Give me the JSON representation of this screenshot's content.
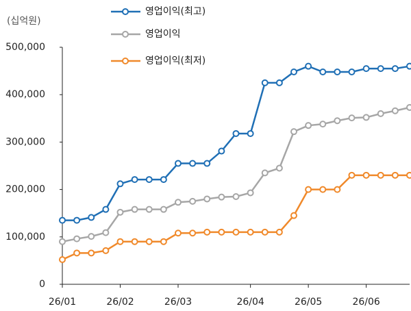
{
  "chart_data": {
    "type": "line",
    "y_axis_label": "(십억원)",
    "categories": [
      "26/01",
      null,
      null,
      null,
      "26/02",
      null,
      null,
      null,
      "26/03",
      null,
      null,
      null,
      null,
      "26/04",
      null,
      null,
      null,
      "26/05",
      null,
      null,
      null,
      "26/06",
      null,
      null,
      null
    ],
    "series": [
      {
        "name": "영업이익(최고)",
        "color": "#1f6fb5",
        "values": [
          135000,
          135000,
          141000,
          158000,
          212000,
          221000,
          221000,
          221000,
          255000,
          255000,
          255000,
          281000,
          318000,
          318000,
          425000,
          425000,
          448000,
          460000,
          448000,
          448000,
          448000,
          455000,
          455000,
          455000,
          460000
        ]
      },
      {
        "name": "영업이익",
        "color": "#a6a6a6",
        "values": [
          90000,
          96000,
          101000,
          109000,
          152000,
          158000,
          158000,
          158000,
          173000,
          175000,
          180000,
          184000,
          185000,
          193000,
          235000,
          245000,
          322000,
          335000,
          338000,
          345000,
          351000,
          352000,
          360000,
          366000,
          373000
        ]
      },
      {
        "name": "영업이익(최저)",
        "color": "#f0892a",
        "values": [
          52000,
          66000,
          66000,
          71000,
          90000,
          90000,
          90000,
          90000,
          108000,
          108000,
          110000,
          110000,
          110000,
          110000,
          110000,
          110000,
          145000,
          200000,
          200000,
          200000,
          230000,
          230000,
          230000,
          230000,
          230000
        ]
      }
    ],
    "ylim": [
      0,
      500000
    ],
    "yticks": [
      0,
      {
        "value": 100000,
        "label": "100,000"
      },
      {
        "value": 200000,
        "label": "200,000"
      },
      {
        "value": 300000,
        "label": "300,000"
      },
      {
        "value": 400000,
        "label": "400,000"
      },
      {
        "value": 500000,
        "label": "500,000"
      }
    ],
    "grid": false,
    "legend": "top"
  }
}
